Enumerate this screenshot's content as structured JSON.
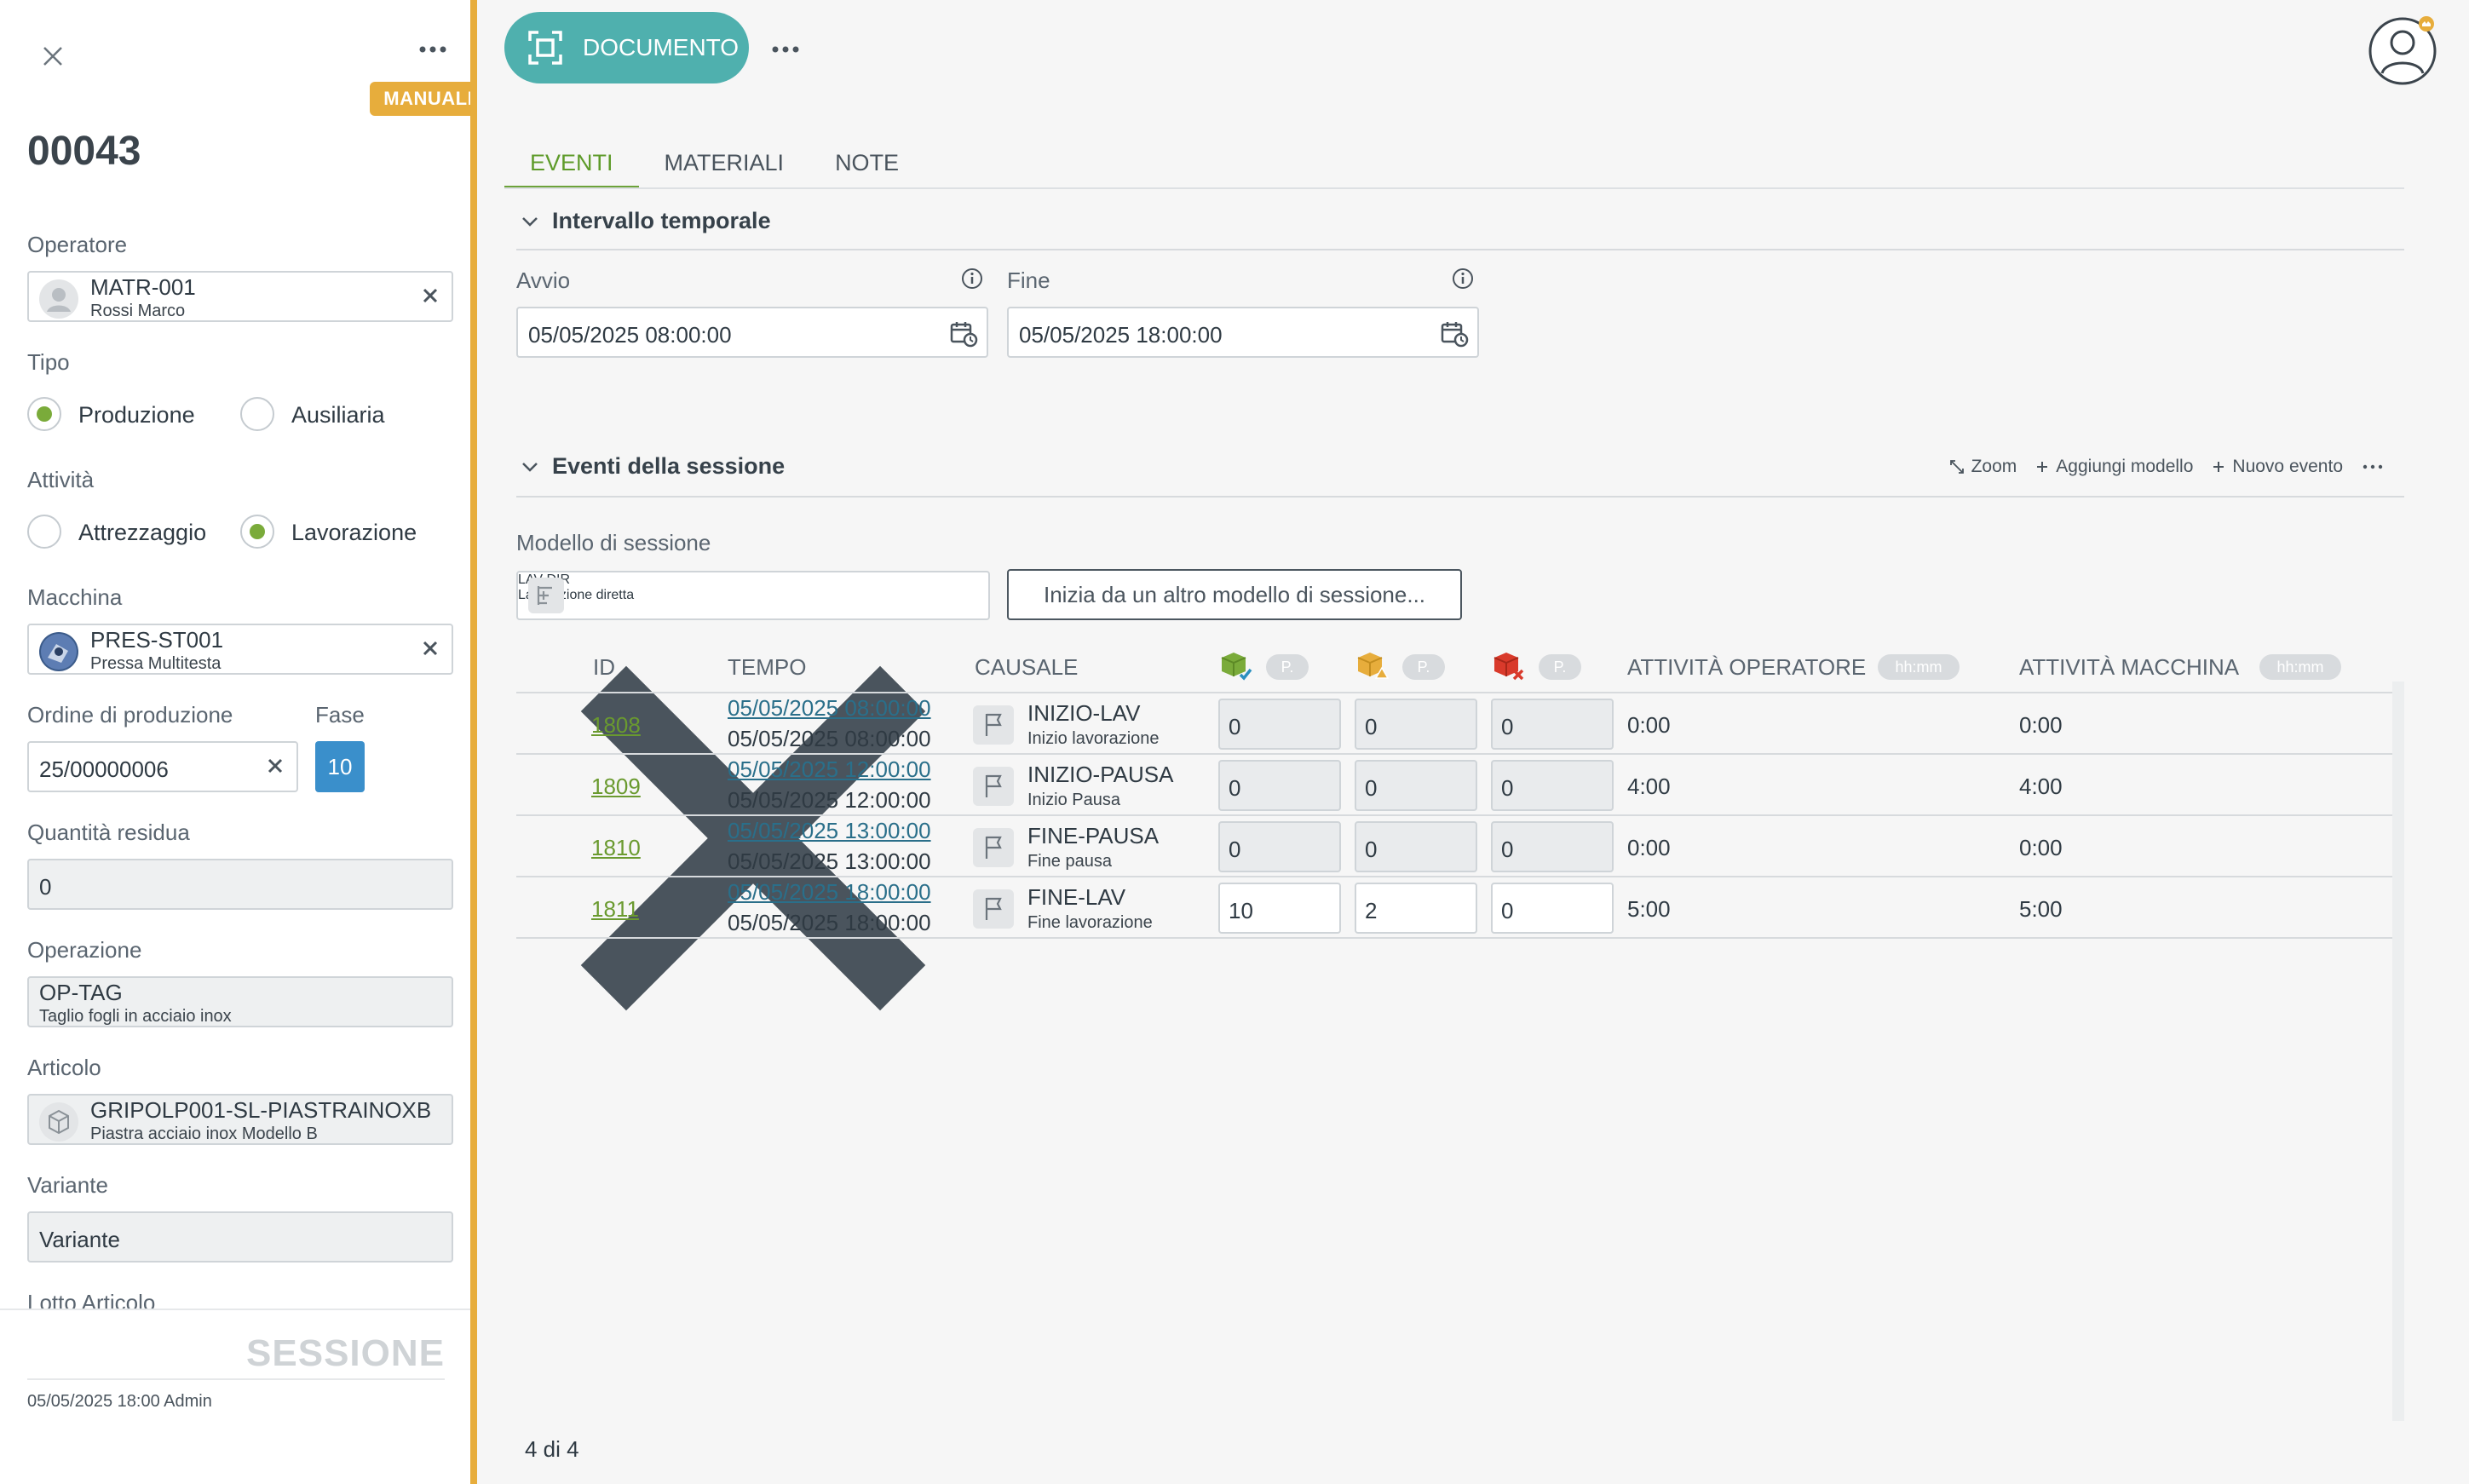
{
  "left_panel": {
    "badge": "MANUALE",
    "record_id": "00043",
    "operatore": {
      "label": "Operatore",
      "code": "MATR-001",
      "name": "Rossi Marco"
    },
    "tipo": {
      "label": "Tipo",
      "options": [
        "Produzione",
        "Ausiliaria"
      ],
      "selected": "Produzione"
    },
    "attivita": {
      "label": "Attività",
      "options": [
        "Attrezzaggio",
        "Lavorazione"
      ],
      "selected": "Lavorazione"
    },
    "macchina": {
      "label": "Macchina",
      "code": "PRES-ST001",
      "name": "Pressa Multitesta"
    },
    "ordine": {
      "label": "Ordine di produzione",
      "value": "25/00000006"
    },
    "fase": {
      "label": "Fase",
      "value": "10"
    },
    "quantita": {
      "label": "Quantità residua",
      "value": "0"
    },
    "operazione": {
      "label": "Operazione",
      "code": "OP-TAG",
      "name": "Taglio fogli in acciaio inox"
    },
    "articolo": {
      "label": "Articolo",
      "code": "GRIPOLP001-SL-PIASTRAINOXB",
      "name": "Piastra acciaio inox Modello B"
    },
    "variante": {
      "label": "Variante",
      "placeholder": "Variante"
    },
    "lotto": {
      "label": "Lotto Articolo"
    },
    "footer": {
      "title": "SESSIONE",
      "meta": "05/05/2025 18:00 Admin"
    }
  },
  "toolbar": {
    "document_label": "DOCUMENTO"
  },
  "tabs": [
    {
      "label": "EVENTI",
      "active": true
    },
    {
      "label": "MATERIALI",
      "active": false
    },
    {
      "label": "NOTE",
      "active": false
    }
  ],
  "interval": {
    "title": "Intervallo temporale",
    "start_label": "Avvio",
    "start_value": "05/05/2025 08:00:00",
    "end_label": "Fine",
    "end_value": "05/05/2025 18:00:00"
  },
  "events_section": {
    "title": "Eventi della sessione",
    "actions": {
      "zoom": "Zoom",
      "add_model": "Aggiungi modello",
      "new_event": "Nuovo evento"
    },
    "model_label": "Modello di sessione",
    "model_code": "LAV-DIR",
    "model_name": "Lavorazione diretta",
    "start_other": "Inizia da un altro modello di sessione..."
  },
  "table": {
    "headers": {
      "id": "ID",
      "tempo": "TEMPO",
      "causale": "CAUSALE",
      "pill_p": "P.",
      "att_op": "ATTIVITÀ OPERATORE",
      "att_mac": "ATTIVITÀ MACCHINA",
      "pill_hhmm": "hh:mm"
    },
    "rows": [
      {
        "id": "1808",
        "time_link": "05/05/2025 08:00:00",
        "time": "05/05/2025 08:00:00",
        "code": "INIZIO-LAV",
        "desc": "Inizio lavorazione",
        "q1": "0",
        "q2": "0",
        "q3": "0",
        "op": "0:00",
        "mac": "0:00",
        "editable": false
      },
      {
        "id": "1809",
        "time_link": "05/05/2025 12:00:00",
        "time": "05/05/2025 12:00:00",
        "code": "INIZIO-PAUSA",
        "desc": "Inizio Pausa",
        "q1": "0",
        "q2": "0",
        "q3": "0",
        "op": "4:00",
        "mac": "4:00",
        "editable": false
      },
      {
        "id": "1810",
        "time_link": "05/05/2025 13:00:00",
        "time": "05/05/2025 13:00:00",
        "code": "FINE-PAUSA",
        "desc": "Fine pausa",
        "q1": "0",
        "q2": "0",
        "q3": "0",
        "op": "0:00",
        "mac": "0:00",
        "editable": false
      },
      {
        "id": "1811",
        "time_link": "05/05/2025 18:00:00",
        "time": "05/05/2025 18:00:00",
        "code": "FINE-LAV",
        "desc": "Fine lavorazione",
        "q1": "10",
        "q2": "2",
        "q3": "0",
        "op": "5:00",
        "mac": "5:00",
        "editable": true
      }
    ],
    "footer_count": "4 di 4"
  },
  "colors": {
    "accent_green": "#7aab3a",
    "manual_orange": "#e7ad3c",
    "doc_teal": "#4fb0ae",
    "fase_blue": "#3a8fcb"
  }
}
